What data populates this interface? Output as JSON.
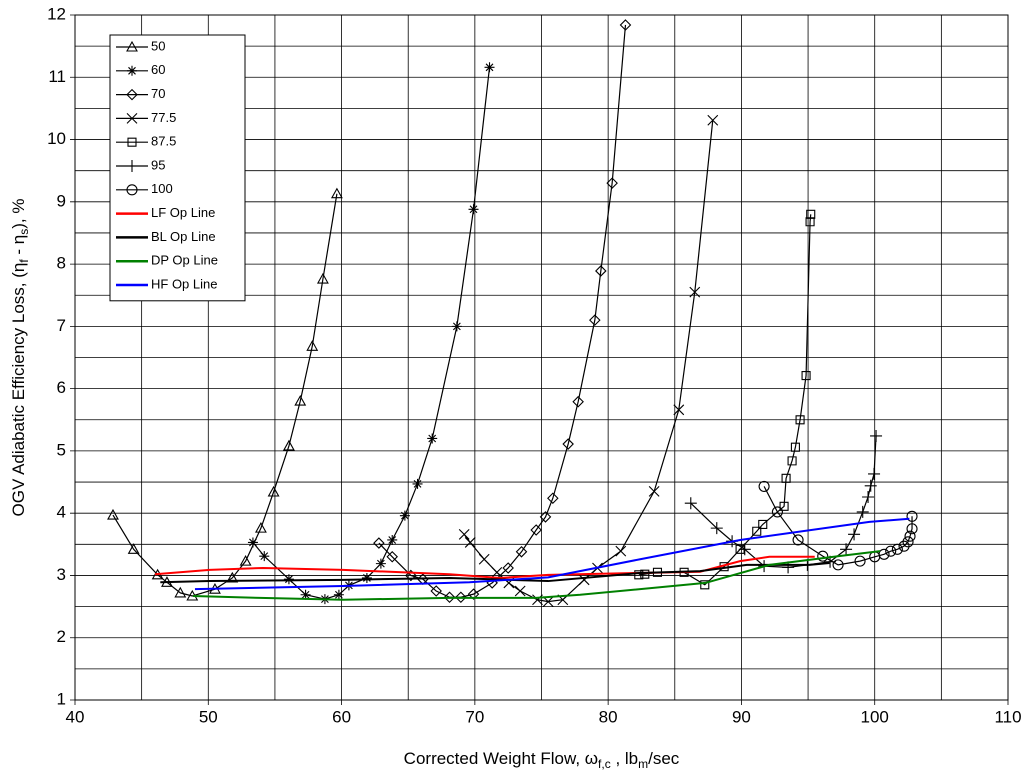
{
  "chart_data": {
    "type": "line",
    "x_label_parts": [
      "Corrected Weight Flow, ω",
      "f,c",
      " , lb",
      "m",
      "/sec"
    ],
    "y_label_parts": [
      "OGV Adiabatic Efficiency Loss, (η",
      "f",
      " - η",
      "s",
      "), %"
    ],
    "xlim": [
      40,
      110
    ],
    "xticks": [
      40,
      50,
      60,
      70,
      80,
      90,
      100,
      110
    ],
    "xminor": [
      45,
      55,
      65,
      75,
      85,
      95,
      105
    ],
    "ylim": [
      1,
      12
    ],
    "yticks": [
      1,
      2,
      3,
      4,
      5,
      6,
      7,
      8,
      9,
      10,
      11,
      12
    ],
    "yminor": [
      1.5,
      2.5,
      3.5,
      4.5,
      5.5,
      6.5,
      7.5,
      8.5,
      9.5,
      10.5,
      11.5
    ],
    "grid": true,
    "legend": "upper left",
    "series": [
      {
        "name": "50",
        "color": "#000000",
        "marker": "triangle",
        "x": [
          42.85,
          44.4,
          46.2,
          46.9,
          47.9,
          48.8,
          50.5,
          51.8,
          52.8,
          53.95,
          54.9,
          56.05,
          56.9,
          57.8,
          58.6,
          59.65
        ],
        "values": [
          3.97,
          3.42,
          3.01,
          2.89,
          2.72,
          2.67,
          2.78,
          2.96,
          3.23,
          3.76,
          4.34,
          5.08,
          5.8,
          6.68,
          7.76,
          9.13
        ]
      },
      {
        "name": "60",
        "color": "#000000",
        "marker": "star",
        "x": [
          53.35,
          54.2,
          56.05,
          57.3,
          58.75,
          59.8,
          60.55,
          61.9,
          62.95,
          63.8,
          64.75,
          65.7,
          66.8,
          68.65,
          69.9,
          71.1
        ],
        "values": [
          3.53,
          3.31,
          2.94,
          2.69,
          2.62,
          2.69,
          2.84,
          2.96,
          3.19,
          3.57,
          3.96,
          4.47,
          5.2,
          7.0,
          8.88,
          11.16
        ]
      },
      {
        "name": "70",
        "color": "#000000",
        "marker": "diamond",
        "x": [
          62.8,
          63.8,
          65.2,
          66.1,
          67.1,
          68.1,
          68.95,
          69.9,
          71.3,
          72.5,
          73.5,
          74.6,
          75.3,
          75.85,
          77.0,
          77.75,
          79.0,
          79.45,
          80.3,
          81.3
        ],
        "values": [
          3.52,
          3.3,
          3.0,
          2.94,
          2.75,
          2.65,
          2.65,
          2.7,
          2.88,
          3.12,
          3.38,
          3.73,
          3.94,
          4.24,
          5.11,
          5.79,
          7.1,
          7.89,
          9.3,
          11.84
        ]
      },
      {
        "name": "77.5",
        "color": "#000000",
        "marker": "x",
        "x": [
          69.2,
          69.65,
          70.7,
          71.65,
          72.55,
          73.4,
          74.7,
          75.5,
          76.6,
          78.2,
          79.2,
          80.95,
          83.45,
          85.3,
          86.5,
          87.85
        ],
        "values": [
          3.66,
          3.53,
          3.26,
          3.05,
          2.88,
          2.75,
          2.61,
          2.58,
          2.61,
          2.93,
          3.12,
          3.39,
          4.35,
          5.66,
          7.55,
          10.31
        ]
      },
      {
        "name": "87.5",
        "color": "#000000",
        "marker": "square",
        "x": [
          82.3,
          82.75,
          83.7,
          85.7,
          87.25,
          88.7,
          89.9,
          91.15,
          91.6,
          93.2,
          93.35,
          93.8,
          94.05,
          94.4,
          94.85,
          95.15,
          95.2
        ],
        "values": [
          3.01,
          3.02,
          3.05,
          3.05,
          2.85,
          3.14,
          3.42,
          3.71,
          3.82,
          4.11,
          4.56,
          4.84,
          5.06,
          5.5,
          6.21,
          8.68,
          8.8
        ]
      },
      {
        "name": "95",
        "color": "#000000",
        "marker": "plus",
        "x": [
          86.2,
          88.15,
          89.3,
          90.25,
          91.7,
          93.5,
          94.95,
          96.65,
          97.85,
          98.45,
          99.1,
          99.5,
          99.7,
          99.95,
          100.1
        ],
        "values": [
          4.16,
          3.76,
          3.55,
          3.42,
          3.15,
          3.13,
          3.17,
          3.22,
          3.42,
          3.66,
          4.02,
          4.26,
          4.44,
          4.63,
          5.24
        ]
      },
      {
        "name": "100",
        "color": "#000000",
        "marker": "circle",
        "x": [
          91.7,
          92.7,
          94.25,
          96.1,
          97.25,
          98.9,
          100.0,
          100.7,
          101.2,
          101.7,
          102.2,
          102.5,
          102.65,
          102.8,
          102.8
        ],
        "values": [
          4.43,
          4.02,
          3.57,
          3.31,
          3.17,
          3.23,
          3.3,
          3.34,
          3.39,
          3.42,
          3.47,
          3.54,
          3.63,
          3.75,
          3.95
        ]
      },
      {
        "name": "LF Op Line",
        "color": "#ff0000",
        "x": [
          46.0,
          50.1,
          54.1,
          60.1,
          68.1,
          71.9,
          75.5,
          82.4,
          86.9,
          89.9,
          92.1,
          95.5
        ],
        "values": [
          3.02,
          3.09,
          3.12,
          3.09,
          3.02,
          2.96,
          3.01,
          3.04,
          3.06,
          3.23,
          3.3,
          3.3
        ]
      },
      {
        "name": "BL Op Line",
        "color": "#000000",
        "x": [
          46.4,
          50.1,
          60.1,
          68.1,
          72.6,
          75.5,
          82.4,
          86.9,
          90.4,
          95.1,
          96.6
        ],
        "values": [
          2.89,
          2.91,
          2.93,
          2.96,
          2.93,
          2.91,
          3.04,
          3.07,
          3.17,
          3.17,
          3.2
        ]
      },
      {
        "name": "DP Op Line",
        "color": "#008000",
        "x": [
          48.85,
          53.9,
          60.1,
          68.1,
          74.6,
          77.9,
          87.3,
          92.1,
          97.3,
          100.4
        ],
        "values": [
          2.67,
          2.64,
          2.61,
          2.64,
          2.64,
          2.69,
          2.88,
          3.17,
          3.31,
          3.39
        ]
      },
      {
        "name": "HF Op Line",
        "color": "#0000ff",
        "x": [
          49.0,
          60.1,
          69.6,
          75.5,
          82.4,
          89.9,
          99.6,
          102.6
        ],
        "values": [
          2.78,
          2.83,
          2.89,
          2.97,
          3.26,
          3.57,
          3.86,
          3.91
        ]
      }
    ]
  }
}
